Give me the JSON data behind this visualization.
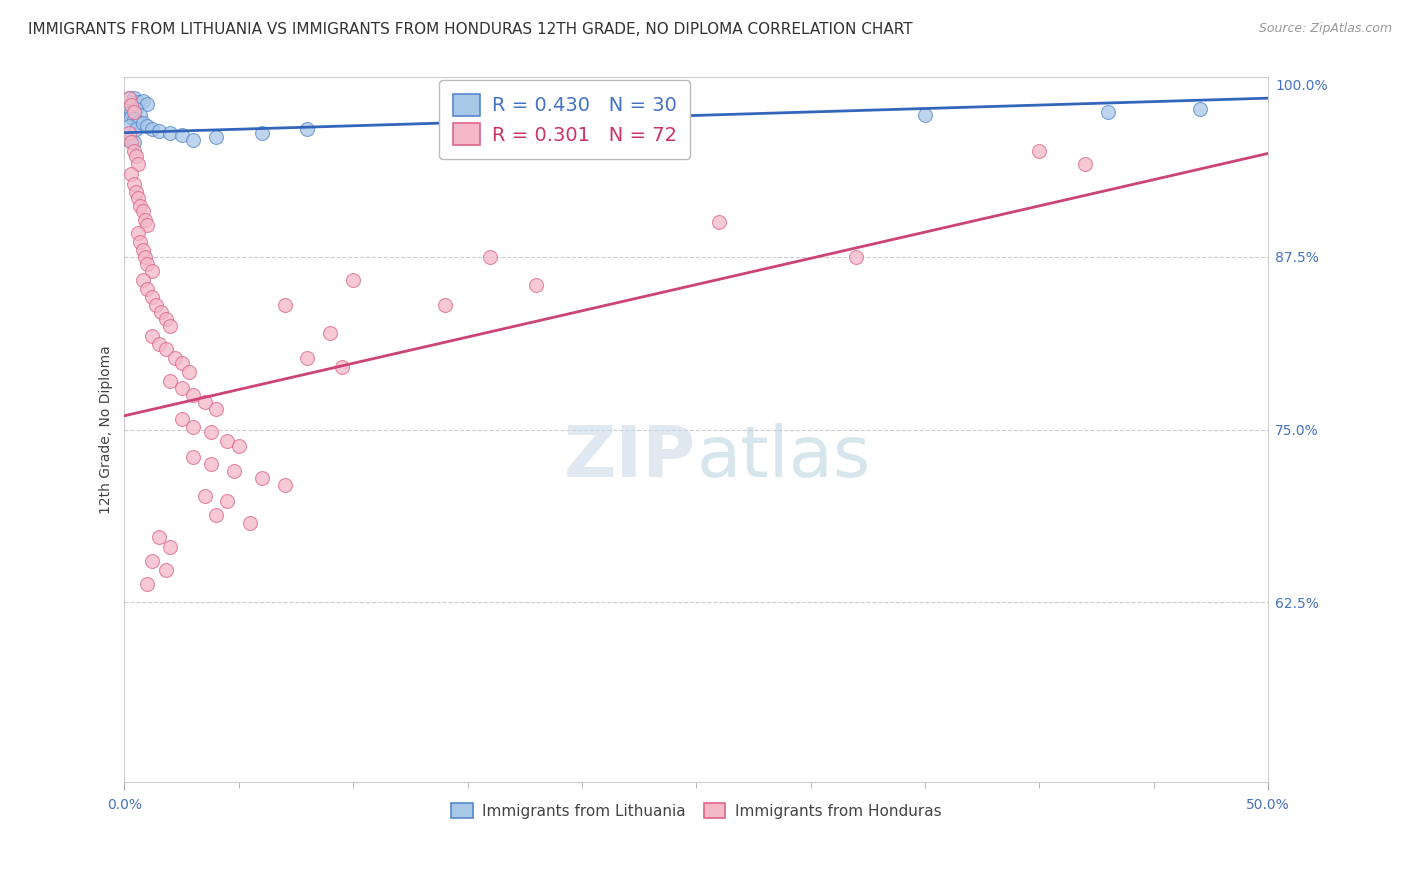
{
  "title": "IMMIGRANTS FROM LITHUANIA VS IMMIGRANTS FROM HONDURAS 12TH GRADE, NO DIPLOMA CORRELATION CHART",
  "source": "Source: ZipAtlas.com",
  "ylabel": "12th Grade, No Diploma",
  "legend_blue_label": "Immigrants from Lithuania",
  "legend_pink_label": "Immigrants from Honduras",
  "blue_color": "#a8c8e8",
  "pink_color": "#f4b8c8",
  "blue_edge_color": "#5588cc",
  "pink_edge_color": "#dd6688",
  "blue_line_color": "#3366bb",
  "pink_line_color": "#cc4477",
  "blue_r_color": "#4472c4",
  "pink_r_color": "#cc3366",
  "watermark_zip": "ZIP",
  "watermark_atlas": "atlas",
  "xlim": [
    0.0,
    0.5
  ],
  "ylim": [
    0.495,
    1.005
  ],
  "blue_points": [
    [
      0.002,
      0.99
    ],
    [
      0.004,
      0.99
    ],
    [
      0.006,
      0.987
    ],
    [
      0.008,
      0.988
    ],
    [
      0.01,
      0.986
    ],
    [
      0.002,
      0.983
    ],
    [
      0.003,
      0.98
    ],
    [
      0.005,
      0.982
    ],
    [
      0.007,
      0.978
    ],
    [
      0.003,
      0.976
    ],
    [
      0.004,
      0.975
    ],
    [
      0.006,
      0.973
    ],
    [
      0.002,
      0.97
    ],
    [
      0.005,
      0.968
    ],
    [
      0.008,
      0.972
    ],
    [
      0.01,
      0.97
    ],
    [
      0.012,
      0.968
    ],
    [
      0.015,
      0.966
    ],
    [
      0.02,
      0.965
    ],
    [
      0.025,
      0.963
    ],
    [
      0.002,
      0.96
    ],
    [
      0.004,
      0.958
    ],
    [
      0.03,
      0.96
    ],
    [
      0.04,
      0.962
    ],
    [
      0.06,
      0.965
    ],
    [
      0.08,
      0.968
    ],
    [
      0.2,
      0.975
    ],
    [
      0.35,
      0.978
    ],
    [
      0.43,
      0.98
    ],
    [
      0.47,
      0.982
    ]
  ],
  "pink_points": [
    [
      0.002,
      0.99
    ],
    [
      0.003,
      0.985
    ],
    [
      0.004,
      0.98
    ],
    [
      0.002,
      0.965
    ],
    [
      0.003,
      0.958
    ],
    [
      0.004,
      0.952
    ],
    [
      0.005,
      0.948
    ],
    [
      0.006,
      0.942
    ],
    [
      0.003,
      0.935
    ],
    [
      0.004,
      0.928
    ],
    [
      0.005,
      0.922
    ],
    [
      0.006,
      0.918
    ],
    [
      0.007,
      0.912
    ],
    [
      0.008,
      0.908
    ],
    [
      0.009,
      0.902
    ],
    [
      0.01,
      0.898
    ],
    [
      0.006,
      0.892
    ],
    [
      0.007,
      0.886
    ],
    [
      0.008,
      0.88
    ],
    [
      0.009,
      0.875
    ],
    [
      0.01,
      0.87
    ],
    [
      0.012,
      0.865
    ],
    [
      0.008,
      0.858
    ],
    [
      0.01,
      0.852
    ],
    [
      0.012,
      0.846
    ],
    [
      0.014,
      0.84
    ],
    [
      0.016,
      0.835
    ],
    [
      0.018,
      0.83
    ],
    [
      0.02,
      0.825
    ],
    [
      0.012,
      0.818
    ],
    [
      0.015,
      0.812
    ],
    [
      0.018,
      0.808
    ],
    [
      0.022,
      0.802
    ],
    [
      0.025,
      0.798
    ],
    [
      0.028,
      0.792
    ],
    [
      0.02,
      0.785
    ],
    [
      0.025,
      0.78
    ],
    [
      0.03,
      0.775
    ],
    [
      0.035,
      0.77
    ],
    [
      0.04,
      0.765
    ],
    [
      0.025,
      0.758
    ],
    [
      0.03,
      0.752
    ],
    [
      0.038,
      0.748
    ],
    [
      0.045,
      0.742
    ],
    [
      0.05,
      0.738
    ],
    [
      0.03,
      0.73
    ],
    [
      0.038,
      0.725
    ],
    [
      0.048,
      0.72
    ],
    [
      0.06,
      0.715
    ],
    [
      0.07,
      0.71
    ],
    [
      0.035,
      0.702
    ],
    [
      0.045,
      0.698
    ],
    [
      0.04,
      0.688
    ],
    [
      0.055,
      0.682
    ],
    [
      0.015,
      0.672
    ],
    [
      0.02,
      0.665
    ],
    [
      0.012,
      0.655
    ],
    [
      0.018,
      0.648
    ],
    [
      0.01,
      0.638
    ],
    [
      0.4,
      0.952
    ],
    [
      0.42,
      0.942
    ],
    [
      0.26,
      0.9
    ],
    [
      0.32,
      0.875
    ],
    [
      0.16,
      0.875
    ],
    [
      0.18,
      0.855
    ],
    [
      0.1,
      0.858
    ],
    [
      0.14,
      0.84
    ],
    [
      0.07,
      0.84
    ],
    [
      0.09,
      0.82
    ],
    [
      0.08,
      0.802
    ],
    [
      0.095,
      0.795
    ]
  ],
  "blue_scatter_size": 100,
  "pink_scatter_size": 100,
  "blue_line_x": [
    0.0,
    0.5
  ],
  "blue_line_y": [
    0.965,
    0.99
  ],
  "pink_line_x": [
    0.0,
    0.5
  ],
  "pink_line_y": [
    0.76,
    0.95
  ],
  "ytick_positions": [
    1.0,
    0.875,
    0.75,
    0.625
  ],
  "ytick_labels": [
    "100.0%",
    "87.5%",
    "75.0%",
    "62.5%"
  ],
  "xtick_positions": [
    0.0,
    0.5
  ],
  "xtick_labels": [
    "0.0%",
    "50.0%"
  ],
  "gridline_y": [
    0.875,
    0.75,
    0.625
  ],
  "title_fontsize": 11,
  "source_fontsize": 9,
  "tick_color": "#4472c4",
  "background_color": "#ffffff"
}
